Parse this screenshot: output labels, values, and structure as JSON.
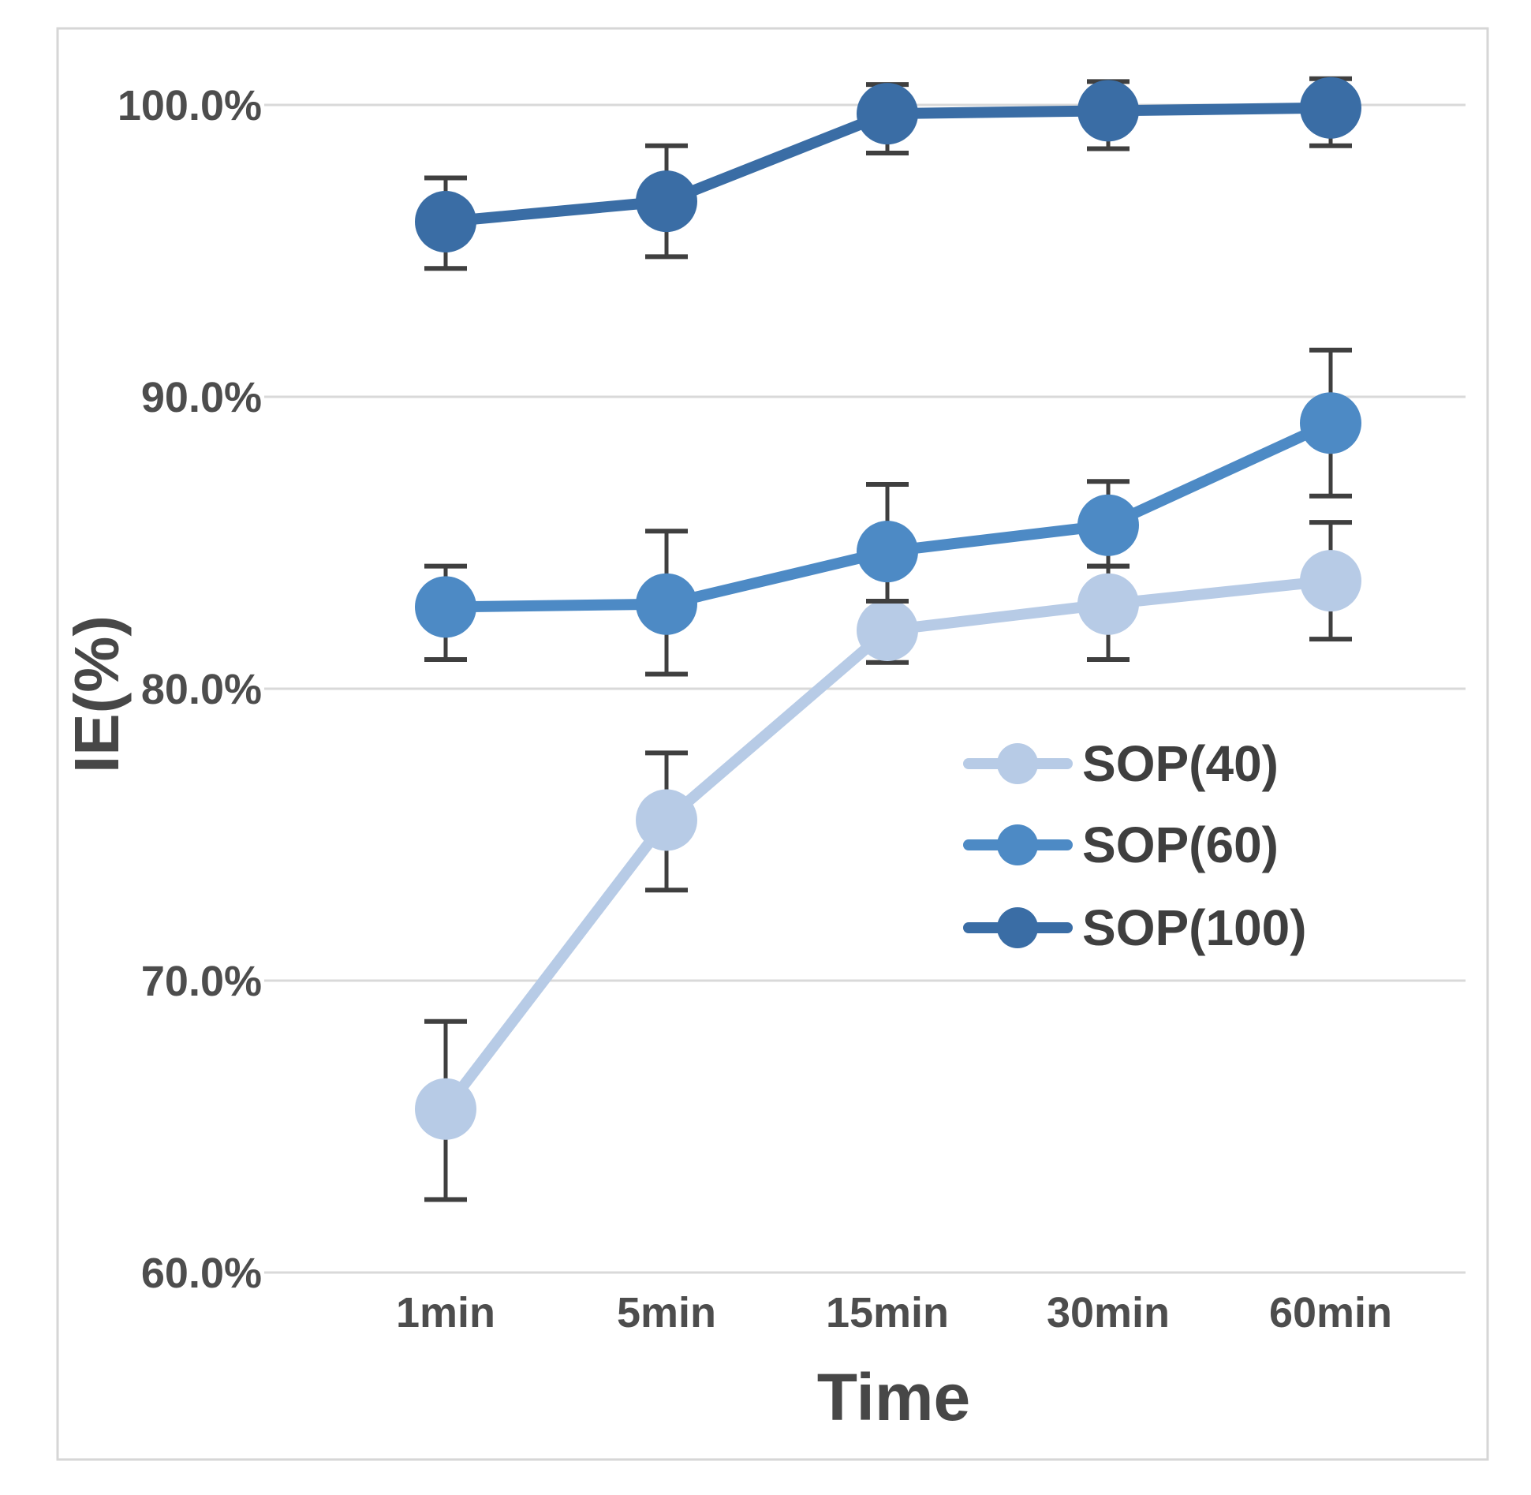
{
  "figure": {
    "description": "Line chart with error bars showing ion-exchange efficiency over time for three SOP series"
  },
  "chart_data": {
    "type": "line",
    "title": "",
    "xlabel": "Time",
    "ylabel": "IE(%)",
    "categories": [
      "1min",
      "5min",
      "15min",
      "30min",
      "60min"
    ],
    "y_axis": {
      "tick_labels": [
        "100.0%",
        "90.0%",
        "80.0%",
        "70.0%",
        "60.0%"
      ],
      "tick_values": [
        100,
        90,
        80,
        70,
        60
      ],
      "unit": "percent",
      "range_shown": [
        58,
        102
      ]
    },
    "grid": "horizontal",
    "legend_position": "center-right",
    "legend_entries": [
      "SOP(40)",
      "SOP(60)",
      "SOP(100)"
    ],
    "series": [
      {
        "name": "SOP(40)",
        "color": "#b7cbe6",
        "values": [
          65.6,
          75.5,
          82.0,
          82.9,
          83.7
        ],
        "err_plus": [
          3.0,
          2.3,
          1.0,
          1.3,
          2.0
        ],
        "err_minus": [
          3.1,
          2.4,
          1.1,
          1.9,
          2.0
        ]
      },
      {
        "name": "SOP(60)",
        "color": "#4d8ac5",
        "values": [
          82.8,
          82.9,
          84.7,
          85.6,
          89.1
        ],
        "err_plus": [
          1.4,
          2.5,
          2.3,
          1.5,
          2.5
        ],
        "err_minus": [
          1.8,
          2.4,
          1.7,
          1.4,
          2.5
        ]
      },
      {
        "name": "SOP(100)",
        "color": "#3a6da5",
        "values": [
          96.0,
          96.7,
          99.7,
          99.8,
          99.9
        ],
        "err_plus": [
          1.5,
          1.9,
          1.0,
          1.0,
          1.0
        ],
        "err_minus": [
          1.6,
          1.9,
          1.35,
          1.3,
          1.3
        ]
      }
    ],
    "style": {
      "error_bar_color": "#3f3f3f",
      "gridline_color": "#d9d9d9",
      "tick_label_color": "#4d4d4d",
      "border_color": "#d6d6d6",
      "background": "#ffffff"
    }
  }
}
